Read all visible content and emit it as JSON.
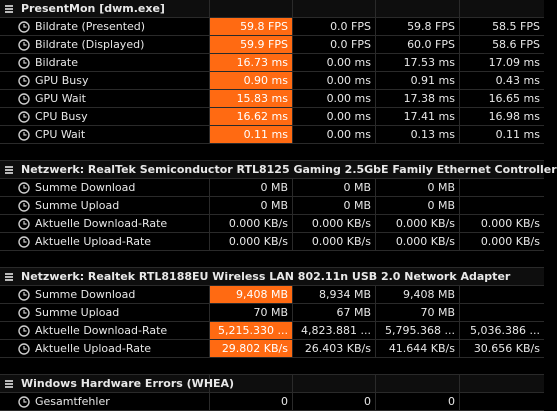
{
  "sections": [
    {
      "title": "PresentMon [dwm.exe]",
      "rows": [
        {
          "label": "Bildrate (Presented)",
          "values": [
            "59.8 FPS",
            "0.0 FPS",
            "59.8 FPS",
            "58.5 FPS"
          ]
        },
        {
          "label": "Bildrate (Displayed)",
          "values": [
            "59.9 FPS",
            "0.0 FPS",
            "60.0 FPS",
            "58.6 FPS"
          ]
        },
        {
          "label": "Bildrate",
          "values": [
            "16.73 ms",
            "0.00 ms",
            "17.53 ms",
            "17.09 ms"
          ]
        },
        {
          "label": "GPU Busy",
          "values": [
            "0.90 ms",
            "0.00 ms",
            "0.91 ms",
            "0.43 ms"
          ]
        },
        {
          "label": "GPU Wait",
          "values": [
            "15.83 ms",
            "0.00 ms",
            "17.38 ms",
            "16.65 ms"
          ]
        },
        {
          "label": "CPU Busy",
          "values": [
            "16.62 ms",
            "0.00 ms",
            "17.41 ms",
            "16.98 ms"
          ]
        },
        {
          "label": "CPU Wait",
          "values": [
            "0.11 ms",
            "0.00 ms",
            "0.13 ms",
            "0.11 ms"
          ]
        }
      ]
    },
    {
      "title": "Netzwerk: RealTek Semiconductor RTL8125 Gaming 2.5GbE Family Ethernet Controller",
      "rows": [
        {
          "label": "Summe Download",
          "values": [
            "0 MB",
            "0 MB",
            "0 MB",
            ""
          ]
        },
        {
          "label": "Summe Upload",
          "values": [
            "0 MB",
            "0 MB",
            "0 MB",
            ""
          ]
        },
        {
          "label": "Aktuelle Download-Rate",
          "values": [
            "0.000 KB/s",
            "0.000 KB/s",
            "0.000 KB/s",
            "0.000 KB/s"
          ]
        },
        {
          "label": "Aktuelle Upload-Rate",
          "values": [
            "0.000 KB/s",
            "0.000 KB/s",
            "0.000 KB/s",
            "0.000 KB/s"
          ]
        }
      ]
    },
    {
      "title": "Netzwerk: Realtek RTL8188EU Wireless LAN 802.11n USB 2.0 Network Adapter",
      "rows": [
        {
          "label": "Summe Download",
          "values": [
            "9,408 MB",
            "8,934 MB",
            "9,408 MB",
            ""
          ]
        },
        {
          "label": "Summe Upload",
          "values": [
            "70 MB",
            "67 MB",
            "70 MB",
            ""
          ]
        },
        {
          "label": "Aktuelle Download-Rate",
          "values": [
            "5,215.330 ...",
            "4,823.881 ...",
            "5,795.368 ...",
            "5,036.386 ..."
          ]
        },
        {
          "label": "Aktuelle Upload-Rate",
          "values": [
            "29.802 KB/s",
            "26.403 KB/s",
            "41.644 KB/s",
            "30.656 KB/s"
          ]
        }
      ]
    },
    {
      "title": "Windows Hardware Errors (WHEA)",
      "rows": [
        {
          "label": "Gesamtfehler",
          "values": [
            "0",
            "0",
            "0",
            ""
          ]
        }
      ]
    }
  ],
  "colors": {
    "highlight": "#ff6a12",
    "background": "#000000",
    "text": "#e8e8e8"
  }
}
